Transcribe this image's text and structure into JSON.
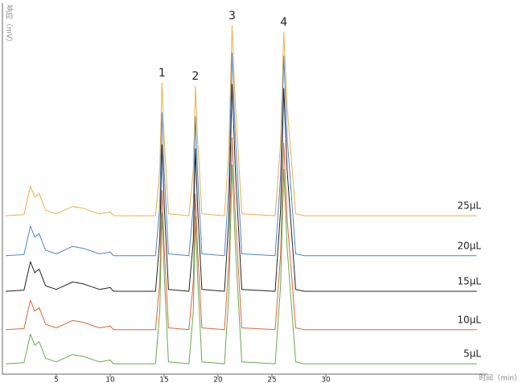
{
  "chart_data": {
    "type": "line",
    "y_label": "响应（mV）",
    "x_label": "时间（min）",
    "xlim": [
      0,
      45
    ],
    "ylim": [
      0,
      100
    ],
    "xticks": [
      5,
      10,
      15,
      20,
      25,
      30
    ],
    "peak_labels": [
      "1",
      "2",
      "3",
      "4"
    ],
    "x": [
      0.3,
      2.0,
      2.6,
      3.0,
      3.4,
      4.0,
      5.0,
      6.5,
      7.5,
      9.0,
      10.0,
      10.3,
      11,
      14.2,
      14.6,
      14.8,
      15.0,
      15.4,
      17.3,
      17.7,
      17.9,
      18.1,
      18.5,
      20.6,
      21.0,
      21.3,
      21.6,
      22.2,
      25.3,
      25.8,
      26.1,
      26.4,
      27.2,
      28,
      44
    ],
    "series": [
      {
        "name": "25μL",
        "color": "#e8b04a",
        "values": [
          42.8,
          43.1,
          50.8,
          47.8,
          48.8,
          44.3,
          43.3,
          45.3,
          44.8,
          43.3,
          43.8,
          42.8,
          42.8,
          42.8,
          55.4,
          78.7,
          64.3,
          43.3,
          42.8,
          55.1,
          77.8,
          63.8,
          43.3,
          42.8,
          60.8,
          94.1,
          73.6,
          43.3,
          42.8,
          62.6,
          92.4,
          72.6,
          43.3,
          42.8,
          42.8
        ]
      },
      {
        "name": "20μL",
        "color": "#4f86c6",
        "values": [
          32,
          32.3,
          40,
          37,
          38,
          33.5,
          32.5,
          34.5,
          34,
          32.5,
          33,
          32,
          32,
          32,
          45.5,
          70.7,
          55.2,
          32.5,
          32,
          45.2,
          69.6,
          54.6,
          32.5,
          32,
          51.2,
          86.8,
          64.9,
          32.5,
          32,
          53.6,
          85.9,
          64.3,
          32.5,
          32,
          32
        ]
      },
      {
        "name": "15μL",
        "color": "#222222",
        "values": [
          22.4,
          22.7,
          30.4,
          27.4,
          28.4,
          23.9,
          22.9,
          24.9,
          24.4,
          22.9,
          23.4,
          22.4,
          22.4,
          22.4,
          36.3,
          62,
          46.2,
          22.9,
          22.4,
          35.9,
          60.9,
          45.5,
          22.9,
          22.4,
          42,
          78.3,
          55.9,
          22.9,
          22.4,
          44.3,
          77.2,
          55.3,
          22.9,
          22.4,
          22.4
        ]
      },
      {
        "name": "10μL",
        "color": "#d9683a",
        "values": [
          12,
          12.3,
          20,
          17,
          18,
          13.5,
          12.5,
          14.5,
          14,
          12.5,
          13,
          12,
          12,
          12,
          25.2,
          49.6,
          34.6,
          12.5,
          12,
          24.8,
          48.7,
          34,
          12.5,
          12,
          30.2,
          64,
          43.2,
          12.5,
          12,
          32.2,
          62.4,
          42.2,
          12.5,
          12,
          12
        ]
      },
      {
        "name": "5μL",
        "color": "#6aa84f",
        "values": [
          2.8,
          3.1,
          10.8,
          7.8,
          8.8,
          4.3,
          3.3,
          5.3,
          4.8,
          3.3,
          3.8,
          2.8,
          2.8,
          2.8,
          17.1,
          43.7,
          27.3,
          3.3,
          2.8,
          16.7,
          42.6,
          26.7,
          3.3,
          2.8,
          21.6,
          56.5,
          35,
          3.3,
          2.8,
          23.8,
          55.4,
          34.4,
          3.3,
          2.8,
          2.8
        ]
      }
    ]
  }
}
